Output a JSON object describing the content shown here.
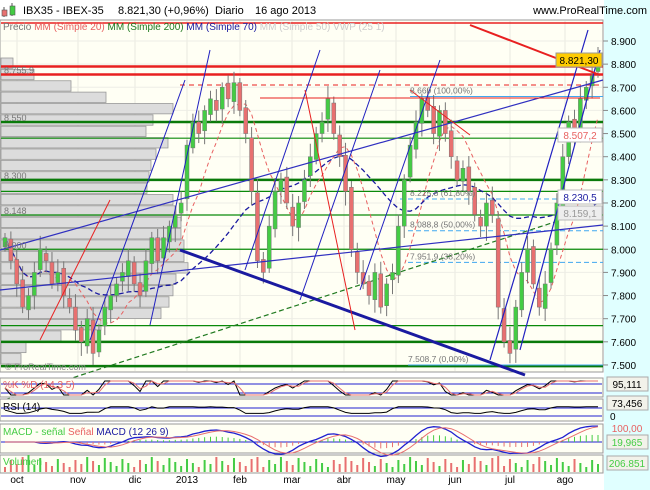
{
  "header": {
    "symbol": "IBX35 - IBEX-35",
    "price": "8.821,30 (+0,96%)",
    "period": "Diario",
    "date": "16 ago 2013",
    "site": "www.ProRealTime.com",
    "icon": "candlestick-icon"
  },
  "legend": {
    "price": "Precio",
    "sma20": "MM (Simple 20)",
    "sma200": "MM (Simple 200)",
    "sma70": "MM (Simple 70)",
    "sma50": "MM (Simple 50) VWP (25 1)"
  },
  "watermark": "© ProRealTime.com",
  "left_labels": [
    "8.755,9",
    "8.550",
    "8.300",
    "8.148",
    "8.000"
  ],
  "fib_labels": [
    "8.669 (100,00%)",
    "8.225,8 (61,80%)",
    "8.088,8 (50,00%)",
    "7.951,9 (38,20%)",
    "7.508,7 (0,00%)"
  ],
  "price_boxes": {
    "last": "8.821,30",
    "red": "8.507,2",
    "blue": "8.230,5",
    "gray": "8.159,1"
  },
  "indicators": {
    "stoch": {
      "label": "%K %D (14 3 5)",
      "value": "95,111"
    },
    "rsi": {
      "label": "RSI (14)",
      "value": "73,456",
      "zero": "0"
    },
    "macd": {
      "label_a": "MACD - señal",
      "label_b": "Señal",
      "label_c": "MACD (12 26 9)",
      "value": "19,965",
      "value_hidden": "100,00"
    },
    "volume": {
      "label": "Volumen",
      "value": "206.851"
    }
  },
  "colors": {
    "up": "#44cc44",
    "down": "#e87070",
    "axis_bg": "#e0ffff",
    "plot_bg": "#fffff4",
    "last_box": "#ffcc00",
    "sma20": "#e86060",
    "sma200": "#207a20",
    "sma70": "#1a1aa0"
  },
  "chart_data": {
    "type": "candlestick",
    "title": "IBX35 - IBEX-35",
    "x_ticks": [
      "oct",
      "nov",
      "dic",
      "2013",
      "feb",
      "mar",
      "abr",
      "may",
      "jun",
      "jul",
      "ago"
    ],
    "y_ticks": [
      "8.900",
      "8.800",
      "8.700",
      "8.600",
      "8.500",
      "8.400",
      "8.300",
      "8.200",
      "8.100",
      "8.000",
      "7.900",
      "7.800",
      "7.700",
      "7.600",
      "7.500"
    ],
    "ylim": [
      7480,
      8960
    ],
    "closes": [
      8050,
      7950,
      7850,
      7750,
      7800,
      7900,
      8000,
      7950,
      7850,
      7900,
      7800,
      7750,
      7650,
      7600,
      7700,
      7550,
      7650,
      7750,
      7800,
      7850,
      7900,
      7950,
      7850,
      7800,
      7950,
      8050,
      7950,
      8050,
      8100,
      8150,
      8200,
      8450,
      8550,
      8500,
      8600,
      8650,
      8600,
      8700,
      8650,
      8720,
      8600,
      8500,
      8250,
      7950,
      7900,
      8100,
      8250,
      8300,
      8200,
      8100,
      8200,
      8300,
      8400,
      8500,
      8550,
      8650,
      8500,
      8400,
      8250,
      8000,
      7900,
      7850,
      7800,
      7900,
      7750,
      7850,
      7900,
      8100,
      8300,
      8450,
      8550,
      8650,
      8600,
      8500,
      8600,
      8500,
      8400,
      8300,
      8350,
      8250,
      8150,
      8100,
      8200,
      8150,
      7750,
      7600,
      7550,
      7750,
      7900,
      8000,
      7850,
      7750,
      7850,
      8000,
      8200,
      8400,
      8550,
      8500,
      8650,
      8700,
      8750,
      8821
    ],
    "support_resistance": {
      "thick_green": [
        8550,
        8300,
        7600,
        7495
      ],
      "thin_green": [
        8480,
        8250,
        8148,
        8000,
        7670
      ],
      "red": [
        8790,
        8755
      ]
    },
    "fibonacci": [
      8669,
      8225.8,
      8088.8,
      7951.9,
      7508.7
    ],
    "volume_profile": [
      12,
      33,
      70,
      105,
      172,
      152,
      145,
      167,
      155,
      150,
      148,
      146,
      172,
      175,
      180,
      180,
      183,
      183,
      187,
      175,
      172,
      168,
      160,
      100,
      60,
      25,
      20
    ],
    "last": 8821.3
  }
}
